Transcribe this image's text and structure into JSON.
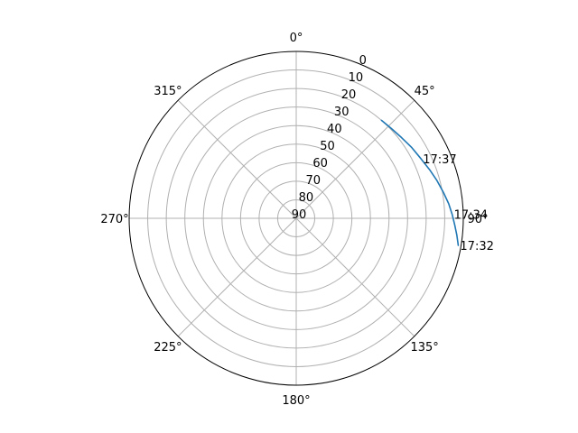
{
  "chart_data": {
    "type": "line",
    "projection": "polar",
    "theta_zero_location": "N",
    "theta_direction": "clockwise",
    "theta_ticks": [
      0,
      45,
      90,
      135,
      180,
      225,
      270,
      315
    ],
    "theta_tick_labels": [
      "0°",
      "45°",
      "90°",
      "135°",
      "180°",
      "225°",
      "270°",
      "315°"
    ],
    "r_axis": "elevation",
    "r_range_outer_to_center": [
      0,
      90
    ],
    "r_ticks": [
      0,
      10,
      20,
      30,
      40,
      50,
      60,
      70,
      80,
      90
    ],
    "r_tick_labels": [
      "0",
      "10",
      "20",
      "30",
      "40",
      "50",
      "60",
      "70",
      "80",
      "90"
    ],
    "r_label_position_deg": 22.5,
    "grid": true,
    "series": [
      {
        "color": "#1f77b4",
        "points": [
          {
            "azimuth": 99.5,
            "elevation": 1.5
          },
          {
            "azimuth": 96.0,
            "elevation": 3.0
          },
          {
            "azimuth": 92.5,
            "elevation": 4.5
          },
          {
            "azimuth": 88.5,
            "elevation": 6.0
          },
          {
            "azimuth": 84.5,
            "elevation": 7.5
          },
          {
            "azimuth": 80.0,
            "elevation": 9.5
          },
          {
            "azimuth": 75.0,
            "elevation": 11.5
          },
          {
            "azimuth": 70.0,
            "elevation": 13.5
          },
          {
            "azimuth": 64.5,
            "elevation": 15.5
          },
          {
            "azimuth": 58.5,
            "elevation": 17.0
          },
          {
            "azimuth": 52.5,
            "elevation": 18.5
          },
          {
            "azimuth": 46.5,
            "elevation": 19.5
          },
          {
            "azimuth": 41.0,
            "elevation": 20.0
          }
        ]
      }
    ],
    "annotations": [
      {
        "text": "17:32",
        "azimuth": 99.5,
        "elevation": 1.5
      },
      {
        "text": "17:34",
        "azimuth": 88.5,
        "elevation": 6.0
      },
      {
        "text": "17:37",
        "azimuth": 64.5,
        "elevation": 15.5
      }
    ]
  }
}
